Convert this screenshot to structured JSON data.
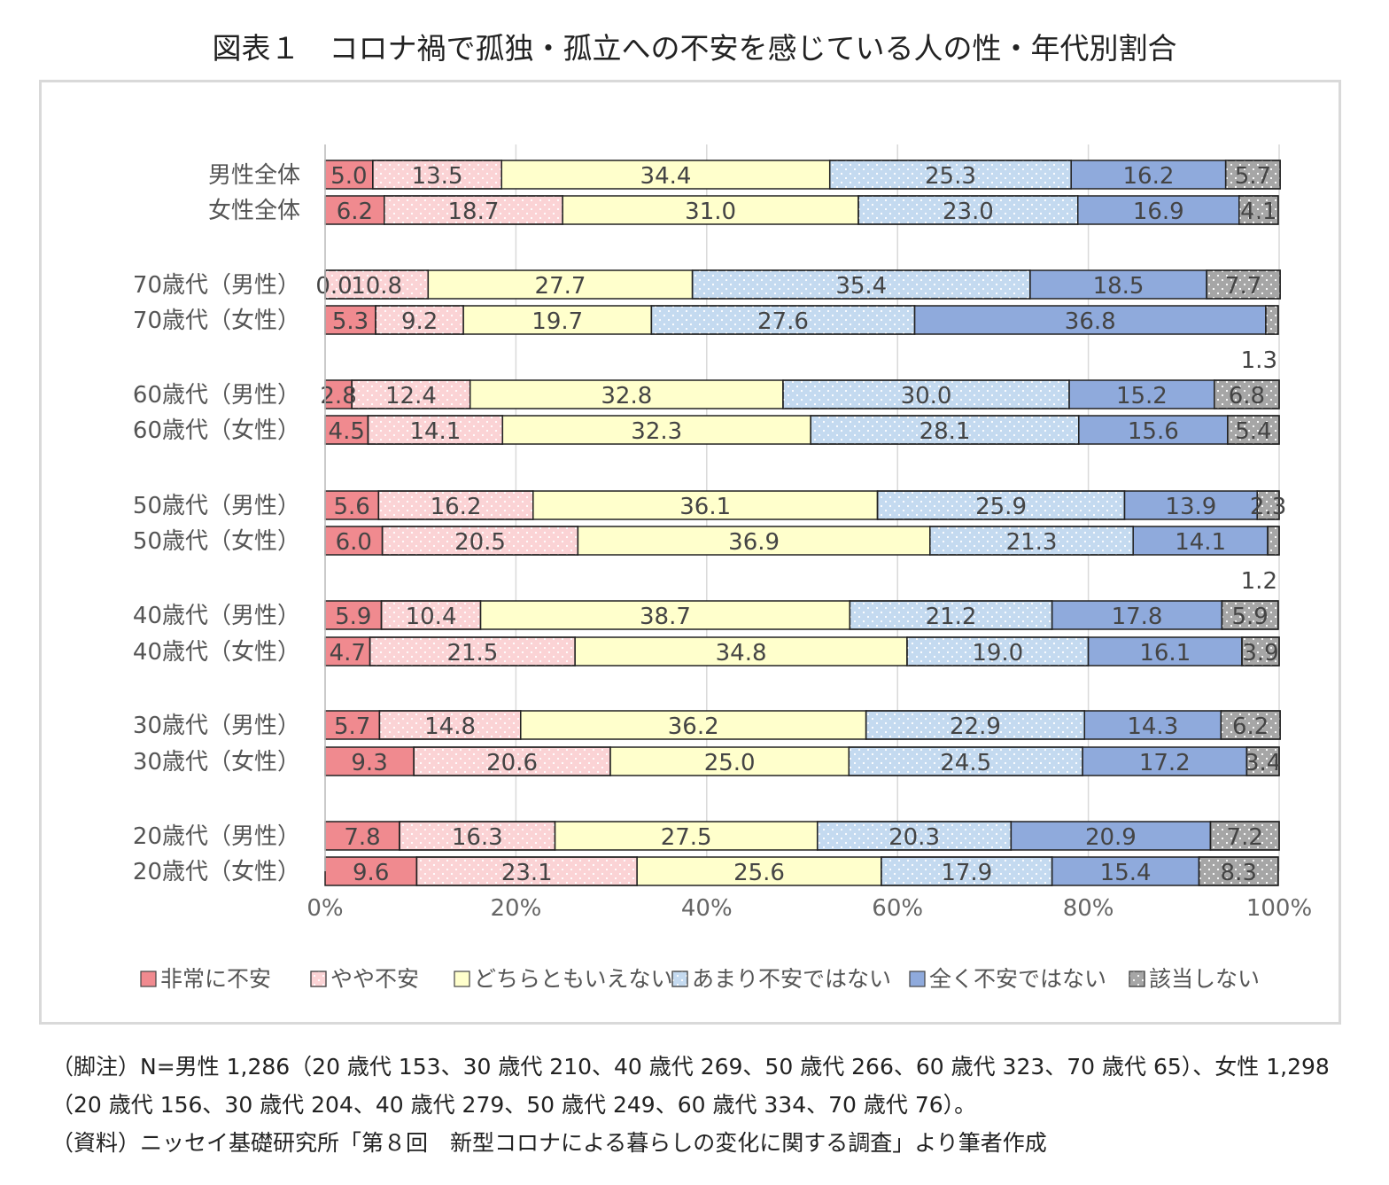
{
  "title": "図表１　コロナ禍で孤独・孤立への不安を感じている人の性・年代別割合",
  "chart_data": {
    "type": "bar",
    "orientation": "horizontal",
    "stacked": "percent",
    "categories": [
      "男性全体",
      "女性全体",
      "70歳代（男性）",
      "70歳代（女性）",
      "60歳代（男性）",
      "60歳代（女性）",
      "50歳代（男性）",
      "50歳代（女性）",
      "40歳代（男性）",
      "40歳代（女性）",
      "30歳代（男性）",
      "30歳代（女性）",
      "20歳代（男性）",
      "20歳代（女性）"
    ],
    "value_labels": [
      [
        "5.0",
        "13.5",
        "34.4",
        "25.3",
        "16.2",
        "5.7"
      ],
      [
        "6.2",
        "18.7",
        "31.0",
        "23.0",
        "16.9",
        "4.1"
      ],
      [
        "0.0",
        "10.8",
        "27.7",
        "35.4",
        "18.5",
        "7.7"
      ],
      [
        "5.3",
        "9.2",
        "19.7",
        "27.6",
        "36.8",
        "1.3"
      ],
      [
        "2.8",
        "12.4",
        "32.8",
        "30.0",
        "15.2",
        "6.8"
      ],
      [
        "4.5",
        "14.1",
        "32.3",
        "28.1",
        "15.6",
        "5.4"
      ],
      [
        "5.6",
        "16.2",
        "36.1",
        "25.9",
        "13.9",
        "2.3"
      ],
      [
        "6.0",
        "20.5",
        "36.9",
        "21.3",
        "14.1",
        "1.2"
      ],
      [
        "5.9",
        "10.4",
        "38.7",
        "21.2",
        "17.8",
        "5.9"
      ],
      [
        "4.7",
        "21.5",
        "34.8",
        "19.0",
        "16.1",
        "3.9"
      ],
      [
        "5.7",
        "14.8",
        "36.2",
        "22.9",
        "14.3",
        "6.2"
      ],
      [
        "9.3",
        "20.6",
        "25.0",
        "24.5",
        "17.2",
        "3.4"
      ],
      [
        "7.8",
        "16.3",
        "27.5",
        "20.3",
        "20.9",
        "7.2"
      ],
      [
        "9.6",
        "23.1",
        "25.6",
        "17.9",
        "15.4",
        "8.3"
      ]
    ],
    "series": [
      {
        "name": "非常に不安",
        "color": "#f08a8f",
        "pattern": "solid",
        "values": [
          5.0,
          6.2,
          0.0,
          5.3,
          2.8,
          4.5,
          5.6,
          6.0,
          5.9,
          4.7,
          5.7,
          9.3,
          7.8,
          9.6
        ]
      },
      {
        "name": "やや不安",
        "color": "#fbd3d5",
        "pattern": "dots",
        "values": [
          13.5,
          18.7,
          10.8,
          9.2,
          12.4,
          14.1,
          16.2,
          20.5,
          10.4,
          21.5,
          14.8,
          20.6,
          16.3,
          23.1
        ]
      },
      {
        "name": "どちらともいえない",
        "color": "#ffffcc",
        "pattern": "solid",
        "values": [
          34.4,
          31.0,
          27.7,
          19.7,
          32.8,
          32.3,
          36.1,
          36.9,
          38.7,
          34.8,
          36.2,
          25.0,
          27.5,
          25.6
        ]
      },
      {
        "name": "あまり不安ではない",
        "color": "#c4daf0",
        "pattern": "dots",
        "values": [
          25.3,
          23.0,
          35.4,
          27.6,
          30.0,
          28.1,
          25.9,
          21.3,
          21.2,
          19.0,
          22.9,
          24.5,
          20.3,
          17.9
        ]
      },
      {
        "name": "全く不安ではない",
        "color": "#8faadc",
        "pattern": "solid",
        "values": [
          16.2,
          16.9,
          18.5,
          36.8,
          15.2,
          15.6,
          13.9,
          14.1,
          17.8,
          16.1,
          14.3,
          17.2,
          20.9,
          15.4
        ]
      },
      {
        "name": "該当しない",
        "color": "#a6a6a6",
        "pattern": "dots",
        "values": [
          5.7,
          4.1,
          7.7,
          1.3,
          6.8,
          5.4,
          2.3,
          1.2,
          5.9,
          3.9,
          6.2,
          3.4,
          7.2,
          8.3
        ]
      }
    ],
    "x_ticks": [
      "0%",
      "20%",
      "40%",
      "60%",
      "80%",
      "100%"
    ],
    "xlim": [
      0,
      100
    ],
    "grid": "vertical",
    "legend_position": "bottom"
  },
  "notes": [
    "（脚注）N=男性 1,286（20 歳代 153、30 歳代 210、40 歳代 269、50 歳代 266、60 歳代 323、70 歳代 65）、女性 1,298",
    "（20 歳代 156、30 歳代 204、40 歳代 279、50 歳代 249、60 歳代 334、70 歳代 76）。",
    "（資料）ニッセイ基礎研究所「第８回　新型コロナによる暮らしの変化に関する調査」より筆者作成"
  ]
}
